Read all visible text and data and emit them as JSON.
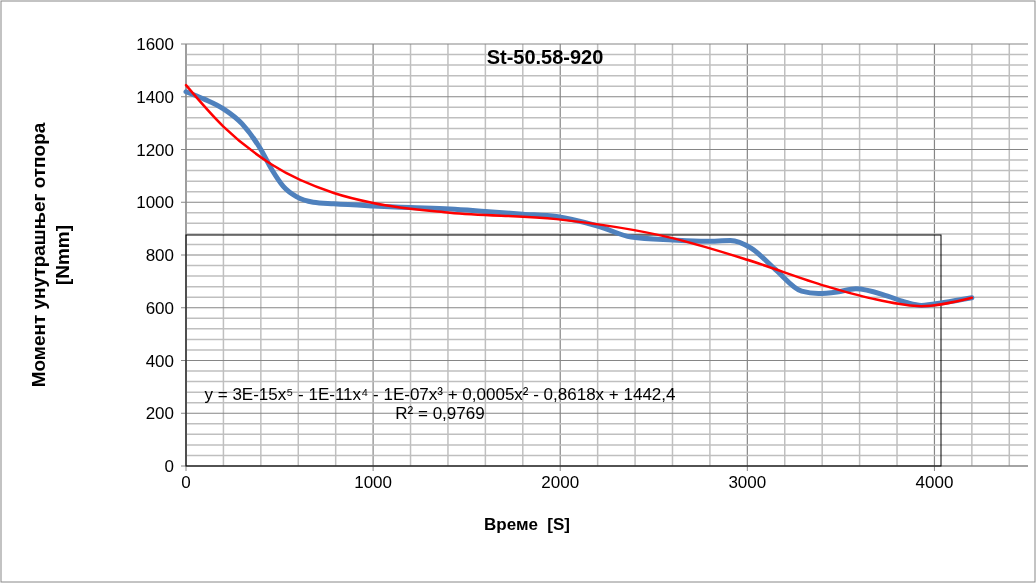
{
  "chart_data": {
    "type": "line",
    "title": "St-50.58-920",
    "xlabel": "Време  [S]",
    "ylabel": "Момент унутрашњег отпора\n[Nmm]",
    "annotations": [
      "y = 3E-15x⁵ - 1E-11x⁴ - 1E-07x³ + 0,0005x² - 0,8618x + 1442,4",
      "R² = 0,9769"
    ],
    "xlim": [
      0,
      4500
    ],
    "ylim": [
      0,
      1600
    ],
    "xticks": [
      0,
      {
        "value": 200,
        "label": null
      },
      {
        "value": 400,
        "label": null
      },
      {
        "value": 600,
        "label": null
      },
      {
        "value": 800,
        "label": null
      },
      1000,
      {
        "value": 1200,
        "label": null
      },
      {
        "value": 1400,
        "label": null
      },
      {
        "value": 1600,
        "label": null
      },
      {
        "value": 1800,
        "label": null
      },
      2000,
      {
        "value": 2200,
        "label": null
      },
      {
        "value": 2400,
        "label": null
      },
      {
        "value": 2600,
        "label": null
      },
      {
        "value": 2800,
        "label": null
      },
      3000,
      {
        "value": 3200,
        "label": null
      },
      {
        "value": 3400,
        "label": null
      },
      {
        "value": 3600,
        "label": null
      },
      {
        "value": 3800,
        "label": null
      },
      4000,
      {
        "value": 4200,
        "label": null
      },
      {
        "value": 4400,
        "label": null
      }
    ],
    "yticks": [
      0,
      {
        "value": 40,
        "label": null
      },
      {
        "value": 80,
        "label": null
      },
      {
        "value": 120,
        "label": null
      },
      {
        "value": 160,
        "label": null
      },
      200,
      {
        "value": 240,
        "label": null
      },
      {
        "value": 280,
        "label": null
      },
      {
        "value": 320,
        "label": null
      },
      {
        "value": 360,
        "label": null
      },
      400,
      {
        "value": 440,
        "label": null
      },
      {
        "value": 480,
        "label": null
      },
      {
        "value": 520,
        "label": null
      },
      {
        "value": 560,
        "label": null
      },
      600,
      {
        "value": 640,
        "label": null
      },
      {
        "value": 680,
        "label": null
      },
      {
        "value": 720,
        "label": null
      },
      {
        "value": 760,
        "label": null
      },
      800,
      {
        "value": 840,
        "label": null
      },
      {
        "value": 880,
        "label": null
      },
      {
        "value": 920,
        "label": null
      },
      {
        "value": 960,
        "label": null
      },
      1000,
      {
        "value": 1040,
        "label": null
      },
      {
        "value": 1080,
        "label": null
      },
      {
        "value": 1120,
        "label": null
      },
      {
        "value": 1160,
        "label": null
      },
      1200,
      {
        "value": 1240,
        "label": null
      },
      {
        "value": 1280,
        "label": null
      },
      {
        "value": 1320,
        "label": null
      },
      {
        "value": 1360,
        "label": null
      },
      1400,
      {
        "value": 1440,
        "label": null
      },
      {
        "value": 1480,
        "label": null
      },
      {
        "value": 1520,
        "label": null
      },
      {
        "value": 1560,
        "label": null
      },
      1600
    ],
    "grid": true,
    "marker": "none",
    "line_style": "solid",
    "series": [
      {
        "color": "#4f81bd",
        "x": [
          0,
          100,
          200,
          300,
          400,
          460,
          520,
          590,
          680,
          790,
          1000,
          1200,
          1410,
          1600,
          1800,
          1980,
          2200,
          2380,
          2600,
          2780,
          2910,
          3020,
          3150,
          3290,
          3380,
          3480,
          3580,
          3750,
          3850,
          3930,
          4050,
          4200
        ],
        "values": [
          1419,
          1390,
          1354,
          1297,
          1200,
          1122,
          1060,
          1021,
          1000,
          994,
          986,
          980,
          974,
          965,
          955,
          946,
          910,
          868,
          857,
          852,
          855,
          826,
          745,
          663,
          654,
          660,
          672,
          644,
          620,
          609,
          620,
          638
        ]
      },
      {
        "type": "line",
        "color": "#ff0000",
        "x": [
          0,
          200,
          460,
          790,
          1000,
          1410,
          1980,
          2600,
          3000,
          3420,
          3690,
          3930,
          4200
        ],
        "values": [
          1444,
          1287,
          1142,
          1035,
          997,
          960,
          936,
          864,
          782,
          682,
          631,
          606,
          638
        ]
      }
    ]
  }
}
